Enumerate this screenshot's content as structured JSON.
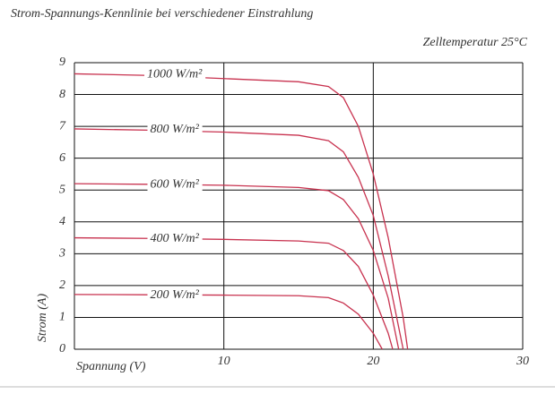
{
  "chart_data": {
    "type": "line",
    "title": "Strom-Spannungs-Kennlinie bei verschiedener Einstrahlung",
    "subtitle": "Zelltemperatur 25°C",
    "x_label": "Spannung (V)",
    "y_label": "Strom (A)",
    "xlim": [
      0,
      30
    ],
    "ylim": [
      0,
      9
    ],
    "xticks": [
      10,
      20,
      30
    ],
    "yticks": [
      0,
      1,
      2,
      3,
      4,
      5,
      6,
      7,
      8,
      9
    ],
    "grid": true,
    "series": [
      {
        "name": "1000 W/m²",
        "color": "#c8324f",
        "x": [
          0,
          5,
          10,
          15,
          17,
          18,
          19,
          20,
          21,
          22,
          22.3
        ],
        "values": [
          8.65,
          8.6,
          8.5,
          8.4,
          8.25,
          7.9,
          7.0,
          5.5,
          3.5,
          1.0,
          0
        ]
      },
      {
        "name": "800 W/m²",
        "color": "#c8324f",
        "x": [
          0,
          5,
          10,
          15,
          17,
          18,
          19,
          20,
          21,
          22
        ],
        "values": [
          6.92,
          6.88,
          6.82,
          6.72,
          6.55,
          6.2,
          5.4,
          4.2,
          2.3,
          0
        ]
      },
      {
        "name": "600 W/m²",
        "color": "#c8324f",
        "x": [
          0,
          5,
          10,
          15,
          17,
          18,
          19,
          20,
          21,
          21.7
        ],
        "values": [
          5.2,
          5.18,
          5.15,
          5.08,
          4.98,
          4.7,
          4.1,
          3.1,
          1.6,
          0
        ]
      },
      {
        "name": "400 W/m²",
        "color": "#c8324f",
        "x": [
          0,
          5,
          10,
          15,
          17,
          18,
          19,
          20,
          21,
          21.3
        ],
        "values": [
          3.5,
          3.48,
          3.45,
          3.4,
          3.33,
          3.1,
          2.6,
          1.7,
          0.5,
          0
        ]
      },
      {
        "name": "200 W/m²",
        "color": "#c8324f",
        "x": [
          0,
          5,
          10,
          15,
          17,
          18,
          19,
          20,
          20.6
        ],
        "values": [
          1.72,
          1.71,
          1.7,
          1.68,
          1.62,
          1.45,
          1.1,
          0.5,
          0
        ]
      }
    ]
  }
}
